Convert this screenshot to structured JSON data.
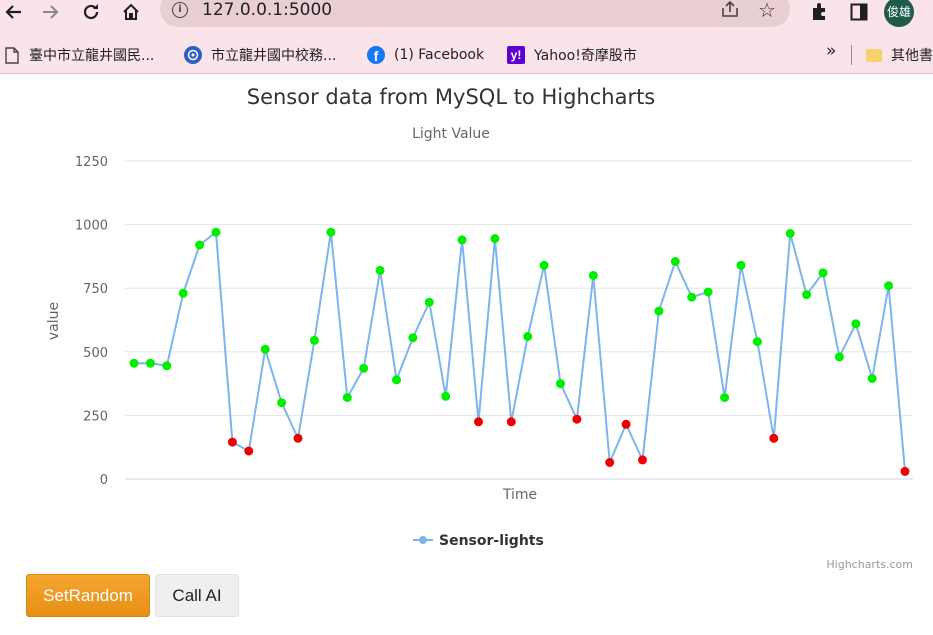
{
  "browser": {
    "url": "127.0.0.1:5000",
    "profile_name": "俊雄",
    "bookmarks": [
      {
        "label": "臺中市立龍井國民...",
        "icon": "page-icon"
      },
      {
        "label": "市立龍井國中校務...",
        "icon": "school-icon"
      },
      {
        "label": "(1) Facebook",
        "icon": "facebook-icon"
      },
      {
        "label": "Yahoo!奇摩股市",
        "icon": "yahoo-icon"
      }
    ],
    "more_label": "»",
    "other_bookmarks_label": "其他書"
  },
  "chart_data": {
    "type": "line",
    "title": "Sensor data from MySQL to Highcharts",
    "subtitle": "Light Value",
    "xlabel": "Time",
    "ylabel": "value",
    "ylim": [
      0,
      1250
    ],
    "yticks": [
      0,
      250,
      500,
      750,
      1000,
      1250
    ],
    "grid": true,
    "legend_position": "bottom-center",
    "line_color": "#7cb5ec",
    "high_color": "#00ee00",
    "low_color": "#ee0000",
    "series": [
      {
        "name": "Sensor-lights",
        "values": [
          455,
          455,
          445,
          730,
          920,
          970,
          145,
          110,
          510,
          300,
          160,
          545,
          970,
          320,
          435,
          820,
          390,
          555,
          695,
          325,
          940,
          225,
          945,
          225,
          560,
          840,
          375,
          235,
          800,
          65,
          215,
          75,
          660,
          855,
          715,
          735,
          320,
          840,
          540,
          160,
          965,
          725,
          810,
          480,
          610,
          395,
          760,
          30
        ]
      }
    ],
    "credits": "Highcharts.com"
  },
  "buttons": {
    "set_random": "SetRandom",
    "call_ai": "Call AI"
  }
}
